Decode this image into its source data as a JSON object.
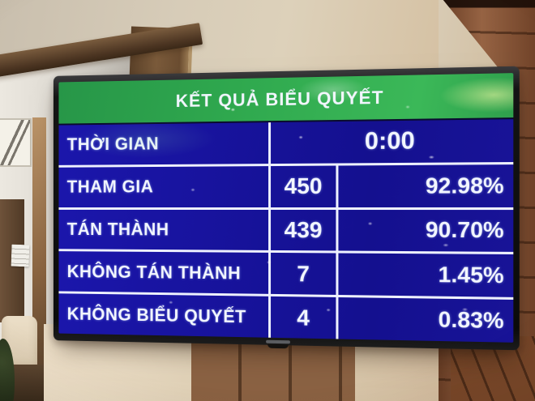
{
  "screen": {
    "title": "KẾT QUẢ BIỂU QUYẾT",
    "time_row": {
      "label": "THỜI GIAN",
      "value": "0:00"
    },
    "rows": [
      {
        "label": "THAM GIA",
        "count": "450",
        "percent": "92.98%"
      },
      {
        "label": "TÁN THÀNH",
        "count": "439",
        "percent": "90.70%"
      },
      {
        "label": "KHÔNG TÁN THÀNH",
        "count": "7",
        "percent": "1.45%"
      },
      {
        "label": "KHÔNG BIỂU QUYẾT",
        "count": "4",
        "percent": "0.83%"
      }
    ],
    "colors": {
      "header_green": "#2fa84e",
      "row_blue": "#17129e",
      "divider_white": "#eef1ff",
      "text_white": "#f2f6ff"
    }
  }
}
